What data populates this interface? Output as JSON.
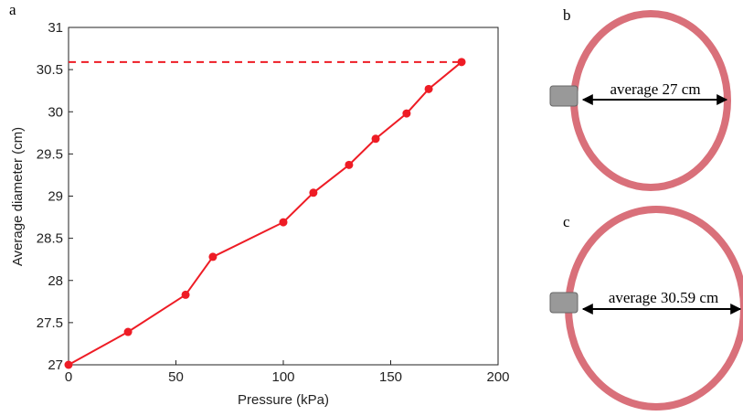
{
  "chart_data": {
    "type": "line",
    "xlabel": "Pressure (kPa)",
    "ylabel": "Average diameter (cm)",
    "x": [
      0,
      27.7,
      54.5,
      67.2,
      100,
      114,
      130.6,
      143,
      157.4,
      167.7,
      183
    ],
    "series": [
      {
        "color": "#ee1c25",
        "values": [
          27,
          27.39,
          27.83,
          28.28,
          28.69,
          29.04,
          29.37,
          29.68,
          29.98,
          30.27,
          30.59
        ]
      }
    ],
    "reference_line": {
      "y": 30.59,
      "style": "dashed",
      "color": "#ee1c25"
    },
    "xlim": [
      0,
      200
    ],
    "xticks": [
      0,
      50,
      100,
      150,
      200
    ],
    "ylim": [
      27,
      31
    ],
    "yticks": [
      27,
      27.5,
      28,
      28.5,
      29,
      29.5,
      30,
      30.5,
      31
    ],
    "grid": false
  },
  "figure": {
    "panel_labels": [
      "a",
      "b",
      "c"
    ],
    "annotations": [
      "average 27 cm",
      "average 30.59 cm"
    ]
  }
}
